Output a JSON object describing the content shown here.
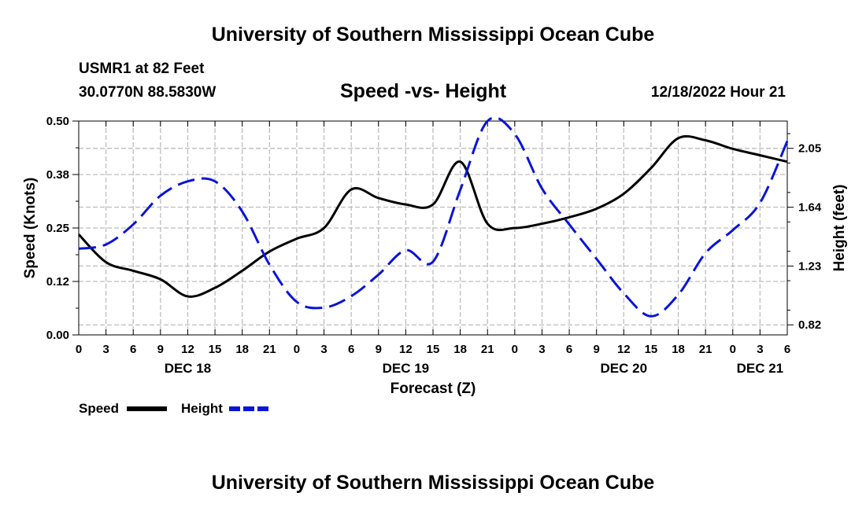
{
  "header": {
    "title": "University of Southern Mississippi Ocean Cube",
    "station": "USMR1 at 82 Feet",
    "coords": "30.0770N  88.5830W",
    "datetime": "12/18/2022 Hour 21"
  },
  "footer": {
    "title": "University of Southern Mississippi Ocean Cube"
  },
  "chart_data": {
    "type": "line",
    "title": "Speed -vs- Height",
    "xlabel": "Forecast (Z)",
    "ylabel": "Speed (Knots)",
    "y2label": "Height (feet)",
    "x_ticks": [
      "0",
      "3",
      "6",
      "9",
      "12",
      "15",
      "18",
      "21",
      "0",
      "3",
      "6",
      "9",
      "12",
      "15",
      "18",
      "21",
      "0",
      "3",
      "6",
      "9",
      "12",
      "15",
      "18",
      "21",
      "0",
      "3",
      "6"
    ],
    "date_labels": [
      {
        "label": "DEC 18",
        "at_hour": 12
      },
      {
        "label": "DEC 19",
        "at_hour": 36
      },
      {
        "label": "DEC 20",
        "at_hour": 60
      },
      {
        "label": "DEC 21",
        "at_hour": 75
      }
    ],
    "xlim": [
      0,
      78
    ],
    "ylim": [
      0,
      0.5
    ],
    "y_ticks": [
      "0.00",
      "0.12",
      "0.25",
      "0.38",
      "0.50"
    ],
    "y2lim": [
      0.75,
      2.24
    ],
    "y2_ticks": [
      "0.82",
      "1.23",
      "1.64",
      "2.05"
    ],
    "series": [
      {
        "name": "Speed",
        "axis": "left",
        "color": "#000000",
        "dash": "solid",
        "x": [
          0,
          3,
          6,
          9,
          12,
          15,
          18,
          21,
          24,
          27,
          30,
          33,
          36,
          39,
          42,
          45,
          48,
          51,
          54,
          57,
          60,
          63,
          66,
          69,
          72,
          75,
          78
        ],
        "y": [
          0.235,
          0.17,
          0.15,
          0.13,
          0.09,
          0.11,
          0.15,
          0.195,
          0.225,
          0.25,
          0.34,
          0.32,
          0.305,
          0.305,
          0.405,
          0.26,
          0.25,
          0.26,
          0.275,
          0.295,
          0.33,
          0.39,
          0.46,
          0.455,
          0.435,
          0.42,
          0.405
        ]
      },
      {
        "name": "Height",
        "axis": "right",
        "color": "#0a14d8",
        "dash": "dashed",
        "x": [
          0,
          3,
          6,
          9,
          12,
          15,
          18,
          21,
          24,
          27,
          30,
          33,
          36,
          39,
          42,
          45,
          48,
          51,
          54,
          57,
          60,
          63,
          66,
          69,
          72,
          75,
          78
        ],
        "y": [
          1.35,
          1.38,
          1.52,
          1.72,
          1.82,
          1.82,
          1.61,
          1.24,
          0.98,
          0.94,
          1.02,
          1.17,
          1.34,
          1.26,
          1.76,
          2.24,
          2.15,
          1.77,
          1.52,
          1.28,
          1.04,
          0.88,
          1.03,
          1.32,
          1.48,
          1.67,
          2.1
        ]
      }
    ],
    "legend": [
      {
        "label": "Speed",
        "color": "#000000",
        "dash": "solid"
      },
      {
        "label": "Height",
        "color": "#0a14d8",
        "dash": "dashed"
      }
    ],
    "legend_position": "bottom-left",
    "grid": true
  }
}
